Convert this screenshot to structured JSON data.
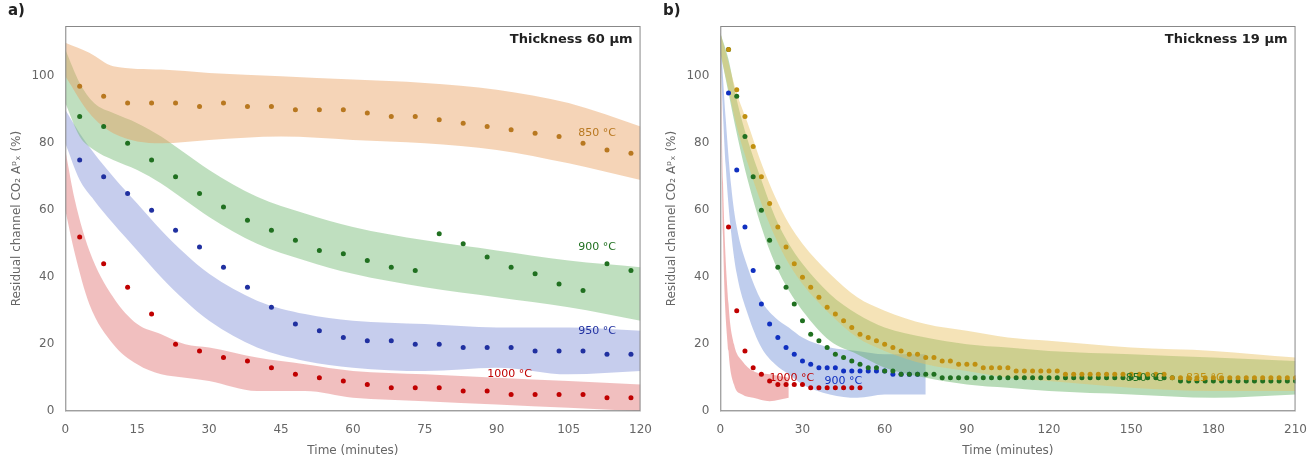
{
  "chart_data": [
    {
      "type": "scatter",
      "title": "Thickness 60 μm",
      "panel_label": "a)",
      "x_label": "Time (minutes)",
      "y_label": "Residual channel CO₂ Aᵖₓ (%)",
      "xlim": [
        0,
        120
      ],
      "ylim": [
        0,
        115
      ],
      "xticks": [
        0,
        15,
        30,
        45,
        60,
        75,
        90,
        105,
        120
      ],
      "yticks": [
        0,
        20,
        40,
        60,
        80,
        100
      ],
      "grid": false,
      "series": [
        {
          "color": "#B87820",
          "x": [
            3,
            8,
            13,
            18,
            23,
            28,
            33,
            38,
            43,
            48,
            53,
            58,
            63,
            68,
            73,
            78,
            83,
            88,
            93,
            98,
            103,
            108,
            113,
            118
          ],
          "values": [
            97,
            94,
            92,
            92,
            92,
            91,
            92,
            91,
            91,
            90,
            90,
            90,
            89,
            88,
            88,
            87,
            86,
            85,
            84,
            83,
            82,
            80,
            78,
            77
          ],
          "band": {
            "color": "#E8A060",
            "x": [
              0,
              5,
              10,
              20,
              30,
              45,
              60,
              75,
              90,
              105,
              120
            ],
            "upper": [
              110,
              107,
              103,
              102,
              101,
              100,
              99,
              98,
              96,
              92,
              85
            ],
            "lower": [
              100,
              89,
              83,
              80,
              81,
              82,
              81,
              80,
              78,
              74,
              69
            ]
          }
        },
        {
          "color": "#207020",
          "x": [
            3,
            8,
            13,
            18,
            23,
            28,
            33,
            38,
            43,
            48,
            53,
            58,
            63,
            68,
            73,
            78,
            83,
            88,
            93,
            98,
            103,
            108,
            113,
            118
          ],
          "values": [
            88,
            85,
            80,
            75,
            70,
            65,
            61,
            57,
            54,
            51,
            48,
            47,
            45,
            43,
            42,
            53,
            50,
            46,
            43,
            41,
            38,
            36,
            44,
            42
          ],
          "band": {
            "color": "#70B870",
            "x": [
              0,
              3,
              6,
              10,
              15,
              20,
              25,
              30,
              40,
              50,
              60,
              75,
              90,
              105,
              120
            ],
            "upper": [
              108,
              98,
              92,
              89,
              86,
              82,
              77,
              72,
              64,
              59,
              55,
              51,
              48,
              45,
              43
            ],
            "lower": [
              92,
              82,
              78,
              75,
              72,
              68,
              63,
              58,
              50,
              45,
              41,
              37,
              34,
              31,
              27
            ]
          }
        },
        {
          "color": "#2030A0",
          "x": [
            3,
            8,
            13,
            18,
            23,
            28,
            33,
            38,
            43,
            48,
            53,
            58,
            63,
            68,
            73,
            78,
            83,
            88,
            93,
            98,
            103,
            108,
            113,
            118
          ],
          "values": [
            75,
            70,
            65,
            60,
            54,
            49,
            43,
            37,
            31,
            26,
            24,
            22,
            21,
            21,
            20,
            20,
            19,
            19,
            19,
            18,
            18,
            18,
            17,
            17
          ],
          "band": {
            "color": "#8090D8",
            "x": [
              0,
              3,
              6,
              10,
              15,
              20,
              25,
              30,
              40,
              50,
              60,
              75,
              90,
              105,
              120
            ],
            "upper": [
              90,
              83,
              77,
              70,
              62,
              54,
              47,
              41,
              33,
              29,
              27,
              26,
              25,
              25,
              24
            ],
            "lower": [
              80,
              69,
              63,
              56,
              48,
              40,
              33,
              27,
              19,
              15,
              13,
              12,
              13,
              11,
              12
            ]
          }
        },
        {
          "color": "#C00000",
          "x": [
            3,
            8,
            13,
            18,
            23,
            28,
            33,
            38,
            43,
            48,
            53,
            58,
            63,
            68,
            73,
            78,
            83,
            88,
            93,
            98,
            103,
            108,
            113,
            118
          ],
          "values": [
            52,
            44,
            37,
            29,
            20,
            18,
            16,
            15,
            13,
            11,
            10,
            9,
            8,
            7,
            7,
            7,
            6,
            6,
            5,
            5,
            5,
            5,
            4,
            4
          ],
          "band": {
            "color": "#E07070",
            "x": [
              0,
              2,
              5,
              10,
              15,
              20,
              25,
              30,
              40,
              50,
              60,
              75,
              90,
              105,
              120
            ],
            "upper": [
              78,
              63,
              48,
              34,
              26,
              23,
              20,
              19,
              16,
              14,
              12,
              11,
              10,
              9,
              8
            ],
            "lower": [
              60,
              47,
              32,
              20,
              14,
              11,
              10,
              9,
              6,
              6,
              4,
              3,
              2,
              1,
              0
            ]
          }
        }
      ],
      "annotations": [
        {
          "text": "850 °C",
          "x": 107,
          "y": 83,
          "color": "#B87820"
        },
        {
          "text": "900 °C",
          "x": 107,
          "y": 49,
          "color": "#207020"
        },
        {
          "text": "950 °C",
          "x": 107,
          "y": 24,
          "color": "#2030A0"
        },
        {
          "text": "1000 °C",
          "x": 88,
          "y": 11,
          "color": "#C00000"
        }
      ]
    },
    {
      "type": "scatter",
      "title": "Thickness 19 μm",
      "panel_label": "b)",
      "x_label": "Time (minutes)",
      "y_label": "Residual channel CO₂ Aᵖₓ (%)",
      "xlim": [
        0,
        210
      ],
      "ylim": [
        0,
        115
      ],
      "xticks": [
        0,
        30,
        60,
        90,
        120,
        150,
        180,
        210
      ],
      "yticks": [
        0,
        20,
        40,
        60,
        80,
        100
      ],
      "grid": false,
      "series": [
        {
          "color": "#C09010",
          "x": [
            3,
            6,
            9,
            12,
            15,
            18,
            21,
            24,
            27,
            30,
            33,
            36,
            39,
            42,
            45,
            48,
            51,
            54,
            57,
            60,
            63,
            66,
            69,
            72,
            75,
            78,
            81,
            84,
            87,
            90,
            93,
            96,
            99,
            102,
            105,
            108,
            111,
            114,
            117,
            120,
            123,
            126,
            129,
            132,
            135,
            138,
            141,
            144,
            147,
            150,
            153,
            156,
            159,
            162,
            165,
            168,
            171,
            174,
            177,
            180,
            183,
            186,
            189,
            192,
            195,
            198,
            201,
            204,
            207,
            210
          ],
          "values": [
            108,
            96,
            88,
            79,
            70,
            62,
            55,
            49,
            44,
            40,
            37,
            34,
            31,
            29,
            27,
            25,
            23,
            22,
            21,
            20,
            19,
            18,
            17,
            17,
            16,
            16,
            15,
            15,
            14,
            14,
            14,
            13,
            13,
            13,
            13,
            12,
            12,
            12,
            12,
            12,
            12,
            11,
            11,
            11,
            11,
            11,
            11,
            11,
            11,
            11,
            11,
            11,
            11,
            11,
            10,
            10,
            10,
            10,
            10,
            10,
            10,
            10,
            10,
            10,
            10,
            10,
            10,
            10,
            10,
            10
          ],
          "band": {
            "color": "#E8C060",
            "x": [
              0,
              3,
              6,
              10,
              15,
              20,
              25,
              30,
              40,
              50,
              60,
              75,
              90,
              105,
              120,
              150,
              180,
              210
            ],
            "upper": [
              113,
              104,
              95,
              86,
              74,
              64,
              56,
              50,
              41,
              34,
              30,
              26,
              24,
              22,
              21,
              19,
              18,
              16
            ],
            "lower": [
              107,
              96,
              85,
              74,
              62,
              52,
              44,
              38,
              29,
              22,
              18,
              14,
              12,
              10,
              9,
              7,
              6,
              6
            ]
          }
        },
        {
          "color": "#207020",
          "x": [
            3,
            6,
            9,
            12,
            15,
            18,
            21,
            24,
            27,
            30,
            33,
            36,
            39,
            42,
            45,
            48,
            51,
            54,
            57,
            60,
            63,
            66,
            69,
            72,
            75,
            78,
            81,
            84,
            87,
            90,
            93,
            96,
            99,
            102,
            105,
            108,
            111,
            114,
            117,
            120,
            123,
            126,
            129,
            132,
            135,
            138,
            141,
            144,
            147,
            150,
            153,
            156,
            159,
            162,
            165,
            168,
            171,
            174,
            177,
            180,
            183,
            186,
            189,
            192,
            195,
            198,
            201,
            204,
            207,
            210
          ],
          "values": [
            108,
            94,
            82,
            70,
            60,
            51,
            43,
            37,
            32,
            27,
            23,
            21,
            19,
            17,
            16,
            15,
            14,
            13,
            13,
            12,
            12,
            11,
            11,
            11,
            11,
            11,
            10,
            10,
            10,
            10,
            10,
            10,
            10,
            10,
            10,
            10,
            10,
            10,
            10,
            10,
            10,
            10,
            10,
            10,
            10,
            10,
            10,
            10,
            10,
            10,
            10,
            10,
            10,
            10,
            10,
            9,
            9,
            9,
            9,
            9,
            9,
            9,
            9,
            9,
            9,
            9,
            9,
            9,
            9,
            9
          ],
          "band": {
            "color": "#60B060",
            "x": [
              0,
              3,
              6,
              10,
              15,
              20,
              25,
              30,
              40,
              50,
              60,
              75,
              90,
              105,
              120,
              150,
              180,
              210
            ],
            "upper": [
              113,
              105,
              93,
              81,
              69,
              58,
              50,
              44,
              35,
              29,
              25,
              22,
              20,
              19,
              18,
              17,
              16,
              15
            ],
            "lower": [
              107,
              95,
              83,
              69,
              55,
              44,
              36,
              30,
              21,
              17,
              13,
              10,
              8,
              7,
              6,
              5,
              4,
              5
            ]
          }
        },
        {
          "color": "#1030C0",
          "x": [
            3,
            6,
            9,
            12,
            15,
            18,
            21,
            24,
            27,
            30,
            33,
            36,
            39,
            42,
            45,
            48,
            51,
            54,
            57,
            60,
            63,
            66,
            69,
            72
          ],
          "values": [
            95,
            72,
            55,
            42,
            32,
            26,
            22,
            19,
            17,
            15,
            14,
            13,
            13,
            13,
            12,
            12,
            12,
            12,
            12,
            12,
            11,
            11,
            11,
            11
          ],
          "band": {
            "color": "#7090D8",
            "x": [
              0,
              2,
              4,
              6,
              10,
              15,
              20,
              25,
              30,
              40,
              50,
              60,
              75
            ],
            "upper": [
              113,
              87,
              67,
              55,
              43,
              33,
              28,
              25,
              22,
              19,
              18,
              17,
              17
            ],
            "lower": [
              107,
              73,
              53,
              41,
              29,
              19,
              14,
              11,
              8,
              5,
              4,
              5,
              5
            ]
          }
        },
        {
          "color": "#C00000",
          "x": [
            3,
            6,
            9,
            12,
            15,
            18,
            21,
            24,
            27,
            30,
            33,
            36,
            39,
            42,
            45,
            48,
            51
          ],
          "values": [
            55,
            30,
            18,
            13,
            11,
            9,
            8,
            8,
            8,
            8,
            7,
            7,
            7,
            7,
            7,
            7,
            7
          ],
          "band": {
            "color": "#E06060",
            "x": [
              0,
              1,
              3,
              5,
              8,
              12,
              18,
              25
            ],
            "upper": [
              113,
              68,
              32,
              20,
              15,
              12,
              11,
              10
            ],
            "lower": [
              107,
              52,
              18,
              8,
              5,
              4,
              3,
              4
            ]
          }
        }
      ],
      "annotations": [
        {
          "text": "1000 °C",
          "x": 18,
          "y": 10,
          "color": "#C00000"
        },
        {
          "text": "900 °C",
          "x": 38,
          "y": 9,
          "color": "#1030C0"
        },
        {
          "text": "850 °C",
          "x": 148,
          "y": 10,
          "color": "#207020"
        },
        {
          "text": "825 °C",
          "x": 170,
          "y": 10,
          "color": "#C09010"
        }
      ]
    }
  ]
}
